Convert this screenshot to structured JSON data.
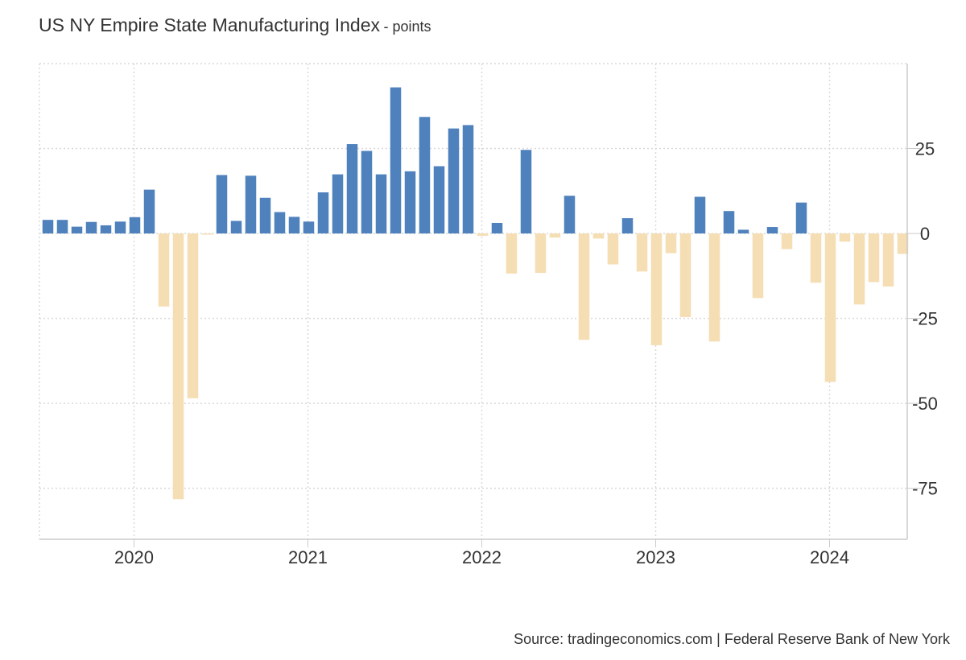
{
  "title": "US NY Empire State Manufacturing Index",
  "units": "- points",
  "source": "Source: tradingeconomics.com | Federal Reserve Bank of New York",
  "colors": {
    "positive": "#4f81bd",
    "negative": "#f5deb3",
    "grid": "#d9d9d9",
    "axis": "#cccccc",
    "text": "#333333"
  },
  "chart_data": {
    "type": "bar",
    "x_ticks": [
      "2020",
      "2021",
      "2022",
      "2023",
      "2024"
    ],
    "y_ticks": [
      25,
      0,
      -25,
      -50,
      -75
    ],
    "ylim": [
      -90,
      50
    ],
    "grid": true,
    "categories": [
      "2019-07",
      "2019-08",
      "2019-09",
      "2019-10",
      "2019-11",
      "2019-12",
      "2020-01",
      "2020-02",
      "2020-03",
      "2020-04",
      "2020-05",
      "2020-06",
      "2020-07",
      "2020-08",
      "2020-09",
      "2020-10",
      "2020-11",
      "2020-12",
      "2021-01",
      "2021-02",
      "2021-03",
      "2021-04",
      "2021-05",
      "2021-06",
      "2021-07",
      "2021-08",
      "2021-09",
      "2021-10",
      "2021-11",
      "2021-12",
      "2022-01",
      "2022-02",
      "2022-03",
      "2022-04",
      "2022-05",
      "2022-06",
      "2022-07",
      "2022-08",
      "2022-09",
      "2022-10",
      "2022-11",
      "2022-12",
      "2023-01",
      "2023-02",
      "2023-03",
      "2023-04",
      "2023-05",
      "2023-06",
      "2023-07",
      "2023-08",
      "2023-09",
      "2023-10",
      "2023-11",
      "2023-12",
      "2024-01",
      "2024-02",
      "2024-03",
      "2024-04",
      "2024-05",
      "2024-06"
    ],
    "values": [
      4,
      4,
      2,
      3.4,
      2.4,
      3.5,
      4.8,
      12.9,
      -21.5,
      -78.2,
      -48.5,
      -0.2,
      17.2,
      3.7,
      17,
      10.5,
      6.3,
      4.9,
      3.5,
      12.1,
      17.4,
      26.3,
      24.3,
      17.4,
      43,
      18.3,
      34.3,
      19.8,
      30.9,
      31.9,
      -0.7,
      3.1,
      -11.8,
      24.6,
      -11.6,
      -1.2,
      11.1,
      -31.3,
      -1.5,
      -9.1,
      4.5,
      -11.2,
      -32.9,
      -5.8,
      -24.6,
      10.8,
      -31.8,
      6.6,
      1.1,
      -19,
      1.9,
      -4.6,
      9.1,
      -14.5,
      -43.7,
      -2.4,
      -20.9,
      -14.3,
      -15.6,
      -6
    ]
  }
}
